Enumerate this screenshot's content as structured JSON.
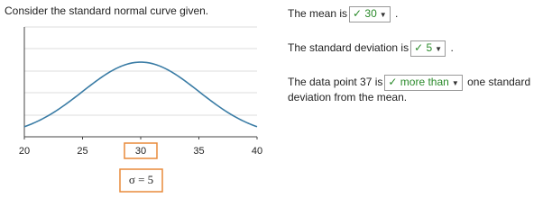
{
  "prompt": "Consider the standard normal curve given.",
  "chart_data": {
    "type": "normal-curve",
    "mean": 30,
    "sd": 5,
    "xlim": [
      20,
      40
    ],
    "xticks": [
      20,
      25,
      30,
      35,
      40
    ],
    "color": "#3a7ca5",
    "sigma_label": "σ = 5"
  },
  "questions": [
    {
      "before": "The mean is",
      "answer": "30",
      "after": "."
    },
    {
      "before": "The standard deviation is",
      "answer": "5",
      "after": "."
    },
    {
      "before": "The data point 37 is",
      "answer": "more than",
      "after": "one standard",
      "after2": "deviation from the mean."
    }
  ]
}
